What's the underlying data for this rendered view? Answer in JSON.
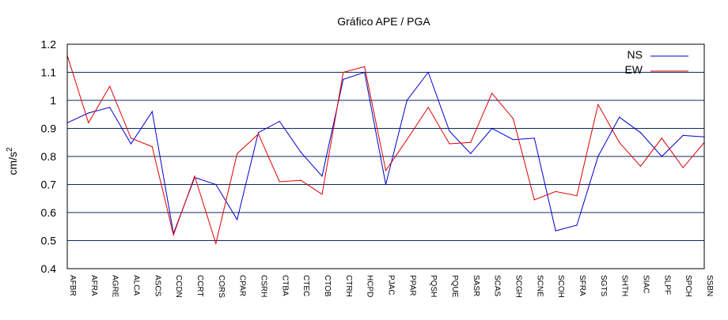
{
  "chart_data": {
    "type": "line",
    "title": "Gráfico  APE / PGA",
    "ylabel": "cm/s",
    "ylabel_sup": "2",
    "xlabel": "",
    "ylim": [
      0.4,
      1.2
    ],
    "yticks": [
      "0.4",
      "0.5",
      "0.6",
      "0.7",
      "0.8",
      "0.9",
      "1",
      "1.1",
      "1.2"
    ],
    "grid": true,
    "legend_position": "top-right",
    "categories": [
      "AFBR",
      "AFRA",
      "AGRE",
      "ALCA",
      "ASCS",
      "CCDN",
      "CCRT",
      "CORS",
      "CPAR",
      "CSRH",
      "CTBA",
      "CTEC",
      "CTOB",
      "CTRH",
      "HCPD",
      "PJAC",
      "PPAR",
      "PQSH",
      "PQUE",
      "SASR",
      "SCAS",
      "SCGH",
      "SCNE",
      "SCOH",
      "SFRA",
      "SGTS",
      "SHTH",
      "SIAC",
      "SLPF",
      "SPCH",
      "SSBN"
    ],
    "series": [
      {
        "name": "NS",
        "color": "#0000cc",
        "values": [
          0.92,
          0.955,
          0.975,
          0.845,
          0.96,
          0.525,
          0.725,
          0.7,
          0.575,
          0.885,
          0.925,
          0.815,
          0.73,
          1.075,
          1.1,
          0.7,
          1.0,
          1.1,
          0.89,
          0.81,
          0.9,
          0.86,
          0.865,
          0.535,
          0.555,
          0.8,
          0.94,
          0.885,
          0.8,
          0.875,
          0.87
        ]
      },
      {
        "name": "EW",
        "color": "#dd0000",
        "values": [
          1.16,
          0.92,
          1.05,
          0.865,
          0.835,
          0.52,
          0.73,
          0.49,
          0.81,
          0.88,
          0.71,
          0.715,
          0.665,
          1.1,
          1.12,
          0.75,
          0.86,
          0.975,
          0.845,
          0.85,
          1.025,
          0.935,
          0.645,
          0.675,
          0.66,
          0.985,
          0.85,
          0.765,
          0.865,
          0.76,
          0.85
        ]
      }
    ]
  }
}
